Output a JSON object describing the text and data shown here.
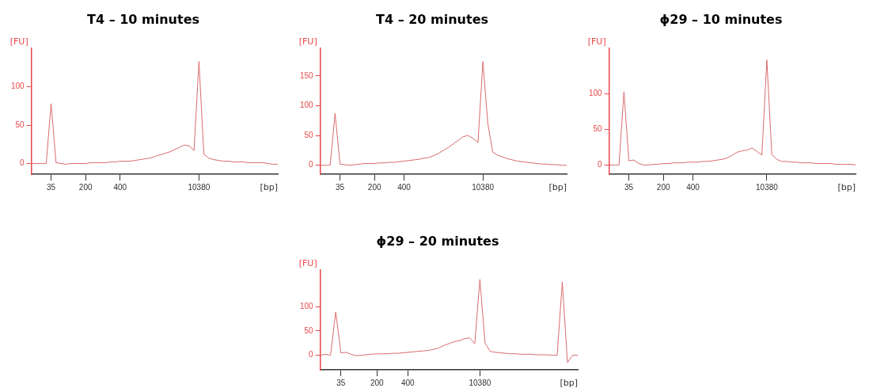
{
  "chart_data": [
    {
      "type": "line",
      "title": "T4 – 10 minutes",
      "xlabel": "[bp]",
      "ylabel": "[FU]",
      "categories": [
        null,
        null,
        null,
        null,
        "35",
        null,
        null,
        null,
        null,
        null,
        null,
        "200",
        null,
        null,
        null,
        null,
        null,
        null,
        "400",
        null,
        null,
        null,
        null,
        null,
        null,
        null,
        null,
        null,
        null,
        null,
        null,
        null,
        null,
        null,
        "10380",
        null,
        null,
        null,
        null,
        null,
        null,
        null,
        null,
        null,
        null,
        null,
        null,
        null,
        null,
        null,
        null
      ],
      "series": [
        {
          "color": "#d96a6c",
          "values": [
            0,
            0,
            0,
            0,
            78,
            1,
            0,
            -1,
            0,
            0,
            0,
            0,
            1,
            1,
            1,
            1,
            2,
            2,
            3,
            3,
            3,
            4,
            5,
            6,
            7,
            9,
            11,
            13,
            15,
            18,
            21,
            24,
            23,
            17,
            133,
            12,
            7,
            5,
            4,
            3,
            3,
            2,
            2,
            2,
            1,
            1,
            1,
            1,
            0,
            -1,
            -1
          ]
        }
      ],
      "ylim": [
        -14,
        150
      ],
      "yticks": [
        0,
        50,
        100
      ]
    },
    {
      "type": "line",
      "title": "T4 – 20 minutes",
      "xlabel": "[bp]",
      "ylabel": "[FU]",
      "categories": [
        null,
        null,
        null,
        null,
        "35",
        null,
        null,
        null,
        null,
        null,
        null,
        "200",
        null,
        null,
        null,
        null,
        null,
        "400",
        null,
        null,
        null,
        null,
        null,
        null,
        null,
        null,
        null,
        null,
        null,
        null,
        null,
        null,
        null,
        "10380",
        null,
        null,
        null,
        null,
        null,
        null,
        null,
        null,
        null,
        null,
        null,
        null,
        null,
        null,
        null,
        null,
        null
      ],
      "series": [
        {
          "color": "#d96a6c",
          "values": [
            0,
            0,
            0,
            87,
            2,
            1,
            0,
            1,
            2,
            3,
            3,
            3,
            4,
            4,
            5,
            5,
            6,
            7,
            8,
            9,
            10,
            12,
            13,
            16,
            20,
            25,
            30,
            36,
            42,
            48,
            50,
            45,
            38,
            174,
            70,
            22,
            17,
            14,
            11,
            9,
            7,
            6,
            5,
            4,
            3,
            2,
            2,
            1,
            1,
            0,
            0
          ]
        }
      ],
      "ylim": [
        -15,
        196
      ],
      "yticks": [
        0,
        50,
        100,
        150
      ]
    },
    {
      "type": "line",
      "title": "ϕ29 – 10 minutes",
      "xlabel": "[bp]",
      "ylabel": "[FU]",
      "categories": [
        null,
        null,
        null,
        null,
        "35",
        null,
        null,
        null,
        null,
        null,
        null,
        "200",
        null,
        null,
        null,
        null,
        null,
        "400",
        null,
        null,
        null,
        null,
        null,
        null,
        null,
        null,
        null,
        null,
        null,
        null,
        null,
        null,
        "10380",
        null,
        null,
        null,
        null,
        null,
        null,
        null,
        null,
        null,
        null,
        null,
        null,
        null,
        null,
        null,
        null,
        null,
        null
      ],
      "series": [
        {
          "color": "#d96a6c",
          "values": [
            0,
            0,
            0,
            103,
            6,
            7,
            2,
            0,
            0,
            1,
            1,
            2,
            2,
            3,
            3,
            3,
            4,
            4,
            4,
            5,
            5,
            6,
            7,
            8,
            10,
            14,
            18,
            20,
            21,
            24,
            19,
            14,
            148,
            15,
            8,
            5,
            5,
            4,
            4,
            3,
            3,
            3,
            2,
            2,
            2,
            2,
            1,
            1,
            1,
            1,
            0
          ]
        }
      ],
      "ylim": [
        -13,
        164
      ],
      "yticks": [
        0,
        50,
        100
      ]
    },
    {
      "type": "line",
      "title": "ϕ29 – 20 minutes",
      "xlabel": "[bp]",
      "ylabel": "[FU]",
      "categories": [
        null,
        null,
        null,
        null,
        "35",
        null,
        null,
        null,
        null,
        null,
        null,
        "200",
        null,
        null,
        null,
        null,
        null,
        "400",
        null,
        null,
        null,
        null,
        null,
        null,
        null,
        null,
        null,
        null,
        null,
        null,
        null,
        "10380",
        null,
        null,
        null,
        null,
        null,
        null,
        null,
        null,
        null,
        null,
        null,
        null,
        null,
        null,
        null,
        null,
        null,
        null,
        null
      ],
      "series": [
        {
          "color": "#d96a6c",
          "values": [
            0,
            2,
            0,
            89,
            5,
            6,
            2,
            -1,
            0,
            1,
            2,
            3,
            3,
            3,
            4,
            4,
            5,
            6,
            7,
            8,
            9,
            10,
            12,
            15,
            20,
            24,
            28,
            30,
            34,
            36,
            24,
            156,
            25,
            8,
            6,
            5,
            4,
            3,
            3,
            2,
            2,
            2,
            1,
            1,
            1,
            0,
            0,
            151,
            -15,
            0,
            0
          ]
        }
      ],
      "ylim": [
        -30,
        175
      ],
      "yticks": [
        0,
        50,
        100
      ]
    }
  ]
}
